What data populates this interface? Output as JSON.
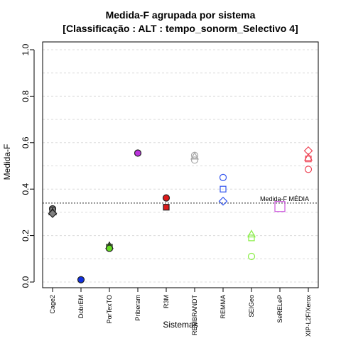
{
  "chart_data": {
    "type": "scatter",
    "title": "Medida-F agrupada por sistema",
    "subtitle": "[Classificação : ALT : tempo_sonorm_Selectivo 4]",
    "xlabel": "Sistemas",
    "ylabel": "Medida-F",
    "ylim": [
      0.0,
      1.0
    ],
    "yticks": [
      "0.0",
      "0.2",
      "0.4",
      "0.6",
      "0.8",
      "1.0"
    ],
    "grid": true,
    "categories": [
      "Cage2",
      "DobrEM",
      "PorTexTO",
      "Priberam",
      "R3M",
      "REMBRANDT",
      "REMMA",
      "SEIGeo",
      "SeRELeP",
      "XIP-L2F/Xerox"
    ],
    "reference_line": {
      "label": "Medida-F MÉDIA",
      "value": 0.34
    },
    "points": [
      {
        "category": "Cage2",
        "value": 0.315,
        "shape": "circle",
        "filled": true,
        "color": "#808080"
      },
      {
        "category": "Cage2",
        "value": 0.31,
        "shape": "square",
        "filled": true,
        "color": "#808080"
      },
      {
        "category": "Cage2",
        "value": 0.3,
        "shape": "triangle",
        "filled": true,
        "color": "#808080"
      },
      {
        "category": "Cage2",
        "value": 0.295,
        "shape": "diamond",
        "filled": true,
        "color": "#808080"
      },
      {
        "category": "DobrEM",
        "value": 0.01,
        "shape": "circle",
        "filled": true,
        "color": "#1030e0"
      },
      {
        "category": "PorTexTO",
        "value": 0.155,
        "shape": "triangle",
        "filled": true,
        "color": "#66dd22"
      },
      {
        "category": "PorTexTO",
        "value": 0.15,
        "shape": "square",
        "filled": true,
        "color": "#66dd22"
      },
      {
        "category": "PorTexTO",
        "value": 0.145,
        "shape": "circle",
        "filled": true,
        "color": "#66dd22"
      },
      {
        "category": "Priberam",
        "value": 0.555,
        "shape": "circle",
        "filled": true,
        "color": "#bb33dd"
      },
      {
        "category": "R3M",
        "value": 0.362,
        "shape": "circle",
        "filled": true,
        "color": "#dd1a1a"
      },
      {
        "category": "R3M",
        "value": 0.322,
        "shape": "square",
        "filled": true,
        "color": "#dd1a1a"
      },
      {
        "category": "REMBRANDT",
        "value": 0.545,
        "shape": "circle",
        "filled": false,
        "color": "#a8a8a8"
      },
      {
        "category": "REMBRANDT",
        "value": 0.54,
        "shape": "triangle",
        "filled": false,
        "color": "#a8a8a8"
      },
      {
        "category": "REMBRANDT",
        "value": 0.525,
        "shape": "circle",
        "filled": false,
        "color": "#a8a8a8"
      },
      {
        "category": "REMMA",
        "value": 0.45,
        "shape": "circle",
        "filled": false,
        "color": "#3355ee"
      },
      {
        "category": "REMMA",
        "value": 0.4,
        "shape": "square",
        "filled": false,
        "color": "#3355ee"
      },
      {
        "category": "REMMA",
        "value": 0.348,
        "shape": "diamond",
        "filled": false,
        "color": "#3355ee"
      },
      {
        "category": "SEIGeo",
        "value": 0.205,
        "shape": "triangle",
        "filled": false,
        "color": "#88ee44"
      },
      {
        "category": "SEIGeo",
        "value": 0.19,
        "shape": "square",
        "filled": false,
        "color": "#88ee44"
      },
      {
        "category": "SEIGeo",
        "value": 0.11,
        "shape": "circle",
        "filled": false,
        "color": "#88ee44"
      },
      {
        "category": "SeRELeP",
        "value": 0.325,
        "shape": "square-large",
        "filled": false,
        "color": "#cc55dd"
      },
      {
        "category": "XIP-L2F/Xerox",
        "value": 0.565,
        "shape": "diamond",
        "filled": false,
        "color": "#ee4455"
      },
      {
        "category": "XIP-L2F/Xerox",
        "value": 0.535,
        "shape": "triangle",
        "filled": false,
        "color": "#ee4455"
      },
      {
        "category": "XIP-L2F/Xerox",
        "value": 0.53,
        "shape": "square",
        "filled": false,
        "color": "#ee4455"
      },
      {
        "category": "XIP-L2F/Xerox",
        "value": 0.485,
        "shape": "circle",
        "filled": false,
        "color": "#ee4455"
      }
    ]
  }
}
